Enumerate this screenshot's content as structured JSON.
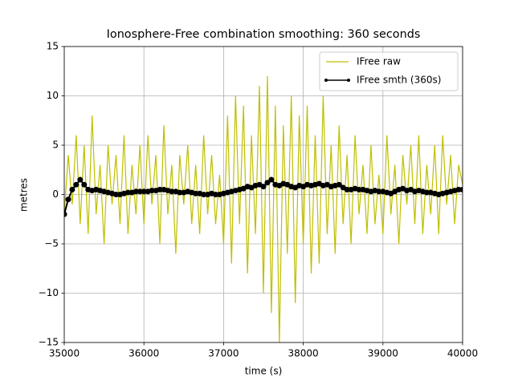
{
  "chart_data": {
    "type": "line",
    "title": "Ionosphere-Free combination smoothing: 360 seconds",
    "x_label": "time (s)",
    "y_label": "metres",
    "x": [
      35000,
      35050,
      35100,
      35150,
      35200,
      35250,
      35300,
      35350,
      35400,
      35450,
      35500,
      35550,
      35600,
      35650,
      35700,
      35750,
      35800,
      35850,
      35900,
      35950,
      36000,
      36050,
      36100,
      36150,
      36200,
      36250,
      36300,
      36350,
      36400,
      36450,
      36500,
      36550,
      36600,
      36650,
      36700,
      36750,
      36800,
      36850,
      36900,
      36950,
      37000,
      37050,
      37100,
      37150,
      37200,
      37250,
      37300,
      37350,
      37400,
      37450,
      37500,
      37550,
      37600,
      37650,
      37700,
      37750,
      37800,
      37850,
      37900,
      37950,
      38000,
      38050,
      38100,
      38150,
      38200,
      38250,
      38300,
      38350,
      38400,
      38450,
      38500,
      38550,
      38600,
      38650,
      38700,
      38750,
      38800,
      38850,
      38900,
      38950,
      39000,
      39050,
      39100,
      39150,
      39200,
      39250,
      39300,
      39350,
      39400,
      39450,
      39500,
      39550,
      39600,
      39650,
      39700,
      39750,
      39800,
      39850,
      39900,
      39950,
      40000
    ],
    "series": [
      {
        "name": "IFree raw",
        "color": "#bfbf00",
        "marker": false,
        "values": [
          -2,
          4,
          -1,
          6,
          -3,
          5,
          -4,
          8,
          -2,
          3,
          -5,
          5,
          -1,
          4,
          -3,
          6,
          -4,
          3,
          -2,
          5,
          -3,
          6,
          -1,
          4,
          -5,
          7,
          -2,
          3,
          -6,
          4,
          -1,
          5,
          -3,
          3,
          -4,
          6,
          -2,
          4,
          -3,
          2,
          -5,
          8,
          -7,
          10,
          -3,
          9,
          -8,
          6,
          -4,
          11,
          -10,
          12,
          -12,
          9,
          -15,
          7,
          -6,
          10,
          -11,
          8,
          -5,
          9,
          -8,
          6,
          -7,
          10,
          -4,
          5,
          -6,
          7,
          -3,
          4,
          -5,
          6,
          -2,
          3,
          -4,
          5,
          -3,
          2,
          -4,
          6,
          -2,
          3,
          -5,
          4,
          -1,
          5,
          -3,
          6,
          -4,
          3,
          -2,
          5,
          -4,
          6,
          -1,
          4,
          -3,
          3,
          1
        ]
      },
      {
        "name": "IFree smth (360s)",
        "color": "#000000",
        "marker": true,
        "values": [
          -2,
          -0.5,
          0.5,
          1.0,
          1.5,
          1.0,
          0.5,
          0.4,
          0.5,
          0.4,
          0.3,
          0.2,
          0.1,
          0.0,
          0.0,
          0.1,
          0.2,
          0.2,
          0.3,
          0.3,
          0.3,
          0.3,
          0.4,
          0.4,
          0.5,
          0.5,
          0.4,
          0.3,
          0.3,
          0.2,
          0.2,
          0.3,
          0.2,
          0.1,
          0.1,
          0.0,
          0.0,
          0.1,
          0.0,
          0.0,
          0.1,
          0.2,
          0.3,
          0.4,
          0.5,
          0.6,
          0.8,
          0.7,
          0.9,
          1.0,
          0.8,
          1.2,
          1.5,
          1.0,
          0.9,
          1.1,
          1.0,
          0.8,
          0.7,
          0.9,
          0.8,
          1.0,
          0.9,
          1.0,
          1.1,
          0.9,
          1.0,
          0.8,
          0.9,
          1.0,
          0.7,
          0.5,
          0.5,
          0.6,
          0.5,
          0.5,
          0.4,
          0.3,
          0.4,
          0.3,
          0.3,
          0.2,
          0.1,
          0.3,
          0.5,
          0.6,
          0.4,
          0.5,
          0.3,
          0.4,
          0.3,
          0.2,
          0.2,
          0.1,
          0.0,
          0.1,
          0.2,
          0.3,
          0.4,
          0.5,
          0.5
        ]
      }
    ],
    "xlim": [
      35000,
      40000
    ],
    "xticks": [
      35000,
      36000,
      37000,
      38000,
      39000,
      40000
    ],
    "ylim": [
      -15,
      15
    ],
    "yticks": [
      {
        "value": -15,
        "label": "−15"
      },
      {
        "value": -10,
        "label": "−10"
      },
      {
        "value": -5,
        "label": "−5"
      },
      0,
      5,
      10,
      15
    ],
    "grid": true,
    "legend": "upper right"
  }
}
